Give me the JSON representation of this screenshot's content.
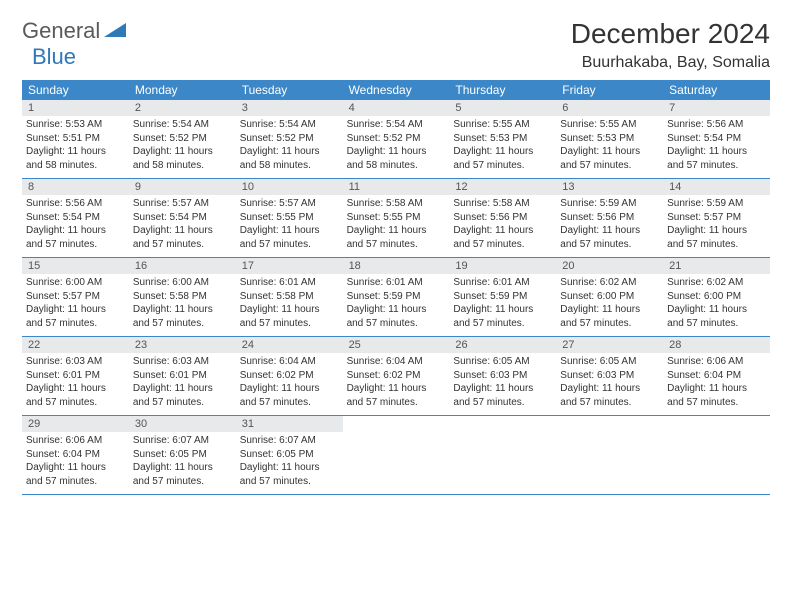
{
  "logo": {
    "part1": "General",
    "part2": "Blue"
  },
  "title": "December 2024",
  "location": "Buurhakaba, Bay, Somalia",
  "colors": {
    "header_bg": "#3b87c8",
    "header_text": "#ffffff",
    "daynum_bg": "#e8e9ea",
    "daynum_text": "#555555",
    "body_text": "#333333",
    "rule": "#3b87c8",
    "logo_gray": "#5a5a5a",
    "logo_blue": "#2f79b9"
  },
  "dayNames": [
    "Sunday",
    "Monday",
    "Tuesday",
    "Wednesday",
    "Thursday",
    "Friday",
    "Saturday"
  ],
  "weeks": [
    [
      {
        "n": "1",
        "sunrise": "5:53 AM",
        "sunset": "5:51 PM",
        "daylight": "11 hours and 58 minutes."
      },
      {
        "n": "2",
        "sunrise": "5:54 AM",
        "sunset": "5:52 PM",
        "daylight": "11 hours and 58 minutes."
      },
      {
        "n": "3",
        "sunrise": "5:54 AM",
        "sunset": "5:52 PM",
        "daylight": "11 hours and 58 minutes."
      },
      {
        "n": "4",
        "sunrise": "5:54 AM",
        "sunset": "5:52 PM",
        "daylight": "11 hours and 58 minutes."
      },
      {
        "n": "5",
        "sunrise": "5:55 AM",
        "sunset": "5:53 PM",
        "daylight": "11 hours and 57 minutes."
      },
      {
        "n": "6",
        "sunrise": "5:55 AM",
        "sunset": "5:53 PM",
        "daylight": "11 hours and 57 minutes."
      },
      {
        "n": "7",
        "sunrise": "5:56 AM",
        "sunset": "5:54 PM",
        "daylight": "11 hours and 57 minutes."
      }
    ],
    [
      {
        "n": "8",
        "sunrise": "5:56 AM",
        "sunset": "5:54 PM",
        "daylight": "11 hours and 57 minutes."
      },
      {
        "n": "9",
        "sunrise": "5:57 AM",
        "sunset": "5:54 PM",
        "daylight": "11 hours and 57 minutes."
      },
      {
        "n": "10",
        "sunrise": "5:57 AM",
        "sunset": "5:55 PM",
        "daylight": "11 hours and 57 minutes."
      },
      {
        "n": "11",
        "sunrise": "5:58 AM",
        "sunset": "5:55 PM",
        "daylight": "11 hours and 57 minutes."
      },
      {
        "n": "12",
        "sunrise": "5:58 AM",
        "sunset": "5:56 PM",
        "daylight": "11 hours and 57 minutes."
      },
      {
        "n": "13",
        "sunrise": "5:59 AM",
        "sunset": "5:56 PM",
        "daylight": "11 hours and 57 minutes."
      },
      {
        "n": "14",
        "sunrise": "5:59 AM",
        "sunset": "5:57 PM",
        "daylight": "11 hours and 57 minutes."
      }
    ],
    [
      {
        "n": "15",
        "sunrise": "6:00 AM",
        "sunset": "5:57 PM",
        "daylight": "11 hours and 57 minutes."
      },
      {
        "n": "16",
        "sunrise": "6:00 AM",
        "sunset": "5:58 PM",
        "daylight": "11 hours and 57 minutes."
      },
      {
        "n": "17",
        "sunrise": "6:01 AM",
        "sunset": "5:58 PM",
        "daylight": "11 hours and 57 minutes."
      },
      {
        "n": "18",
        "sunrise": "6:01 AM",
        "sunset": "5:59 PM",
        "daylight": "11 hours and 57 minutes."
      },
      {
        "n": "19",
        "sunrise": "6:01 AM",
        "sunset": "5:59 PM",
        "daylight": "11 hours and 57 minutes."
      },
      {
        "n": "20",
        "sunrise": "6:02 AM",
        "sunset": "6:00 PM",
        "daylight": "11 hours and 57 minutes."
      },
      {
        "n": "21",
        "sunrise": "6:02 AM",
        "sunset": "6:00 PM",
        "daylight": "11 hours and 57 minutes."
      }
    ],
    [
      {
        "n": "22",
        "sunrise": "6:03 AM",
        "sunset": "6:01 PM",
        "daylight": "11 hours and 57 minutes."
      },
      {
        "n": "23",
        "sunrise": "6:03 AM",
        "sunset": "6:01 PM",
        "daylight": "11 hours and 57 minutes."
      },
      {
        "n": "24",
        "sunrise": "6:04 AM",
        "sunset": "6:02 PM",
        "daylight": "11 hours and 57 minutes."
      },
      {
        "n": "25",
        "sunrise": "6:04 AM",
        "sunset": "6:02 PM",
        "daylight": "11 hours and 57 minutes."
      },
      {
        "n": "26",
        "sunrise": "6:05 AM",
        "sunset": "6:03 PM",
        "daylight": "11 hours and 57 minutes."
      },
      {
        "n": "27",
        "sunrise": "6:05 AM",
        "sunset": "6:03 PM",
        "daylight": "11 hours and 57 minutes."
      },
      {
        "n": "28",
        "sunrise": "6:06 AM",
        "sunset": "6:04 PM",
        "daylight": "11 hours and 57 minutes."
      }
    ],
    [
      {
        "n": "29",
        "sunrise": "6:06 AM",
        "sunset": "6:04 PM",
        "daylight": "11 hours and 57 minutes."
      },
      {
        "n": "30",
        "sunrise": "6:07 AM",
        "sunset": "6:05 PM",
        "daylight": "11 hours and 57 minutes."
      },
      {
        "n": "31",
        "sunrise": "6:07 AM",
        "sunset": "6:05 PM",
        "daylight": "11 hours and 57 minutes."
      },
      null,
      null,
      null,
      null
    ]
  ],
  "labels": {
    "sunrise": "Sunrise:",
    "sunset": "Sunset:",
    "daylight": "Daylight:"
  }
}
